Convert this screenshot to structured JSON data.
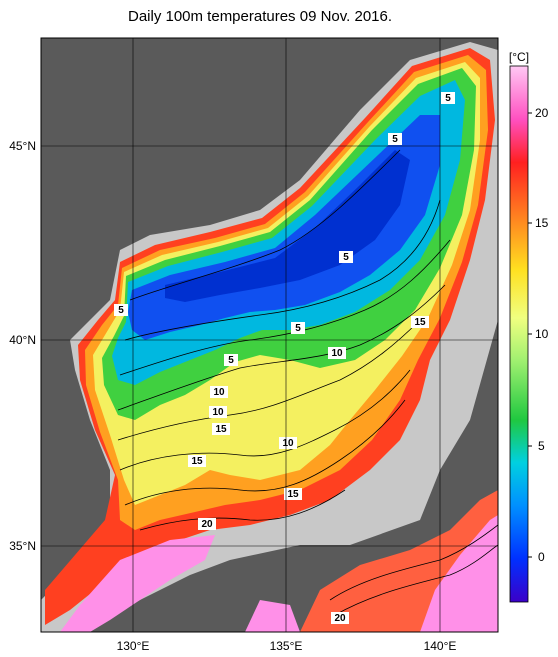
{
  "title": "Daily 100m temperatures 09 Nov. 2016.",
  "map": {
    "lon_ticks": [
      "130°E",
      "135°E",
      "140°E"
    ],
    "lat_ticks": [
      "45°N",
      "40°N",
      "35°N"
    ],
    "colorbar": {
      "unit": "[°C]",
      "ticks": [
        "20",
        "15",
        "10",
        "5",
        "0"
      ],
      "colors": [
        "#3b00c8",
        "#0038ff",
        "#00a8ff",
        "#00e0c0",
        "#30d030",
        "#a0f060",
        "#ffff40",
        "#ffc000",
        "#ff6020",
        "#ff2020",
        "#ff60c0",
        "#ffb0f0"
      ]
    },
    "contour_labels": [
      "5",
      "5",
      "5",
      "5",
      "5",
      "5",
      "10",
      "10",
      "10",
      "10",
      "15",
      "15",
      "15",
      "15",
      "20",
      "20"
    ],
    "colors": {
      "land": "#5a5a5a",
      "coast_gray": "#c8c8c8",
      "background": "#ffffff"
    }
  }
}
